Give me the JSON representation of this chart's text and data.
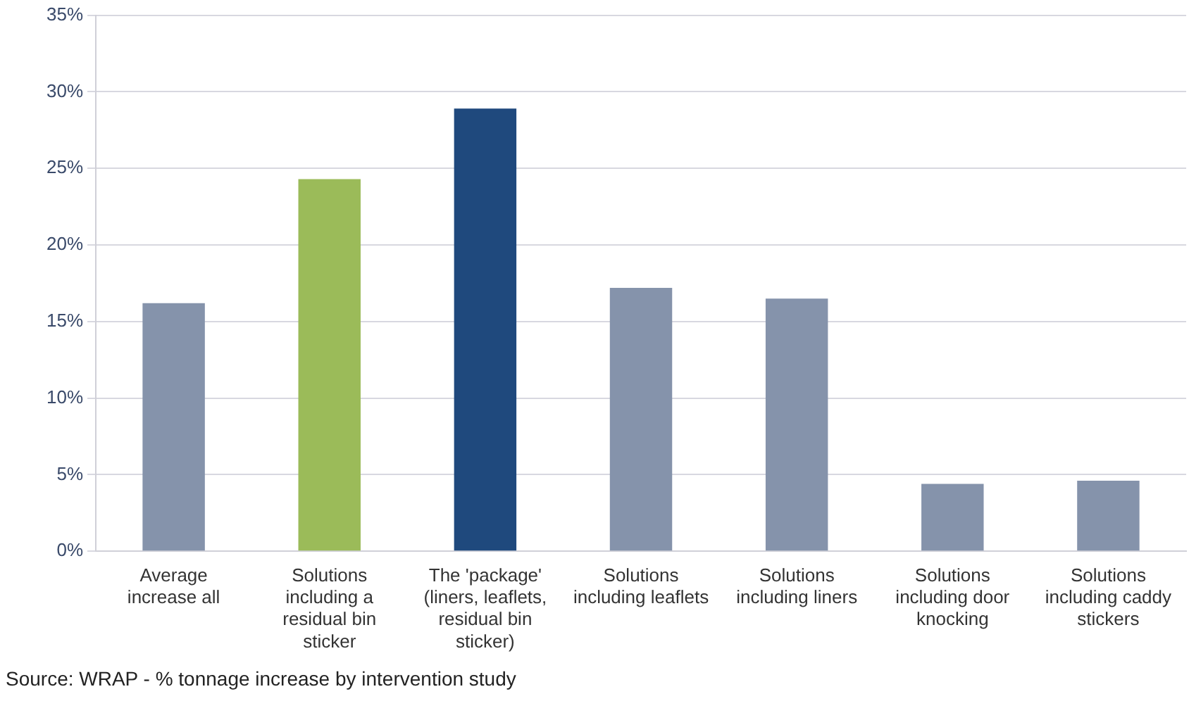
{
  "chart_data": {
    "type": "bar",
    "categories": [
      "Average increase all",
      "Solutions including a residual bin sticker",
      "The 'package' (liners, leaflets, residual bin sticker)",
      "Solutions including leaflets",
      "Solutions including liners",
      "Solutions including door knocking",
      "Solutions including caddy stickers"
    ],
    "values": [
      16.2,
      24.3,
      28.9,
      17.2,
      16.5,
      4.4,
      4.6
    ],
    "colors": [
      "#8593ab",
      "#9bbb59",
      "#1f497d",
      "#8593ab",
      "#8593ab",
      "#8593ab",
      "#8593ab"
    ],
    "ylim": [
      0,
      35
    ],
    "yticks": [
      {
        "value": 0,
        "label": "0%"
      },
      {
        "value": 5,
        "label": "5%"
      },
      {
        "value": 10,
        "label": "10%"
      },
      {
        "value": 15,
        "label": "15%"
      },
      {
        "value": 20,
        "label": "20%"
      },
      {
        "value": 25,
        "label": "25%"
      },
      {
        "value": 30,
        "label": "30%"
      },
      {
        "value": 35,
        "label": "35%"
      }
    ],
    "grid": "y",
    "annotations": [
      "Source: WRAP - % tonnage increase by intervention study"
    ]
  }
}
